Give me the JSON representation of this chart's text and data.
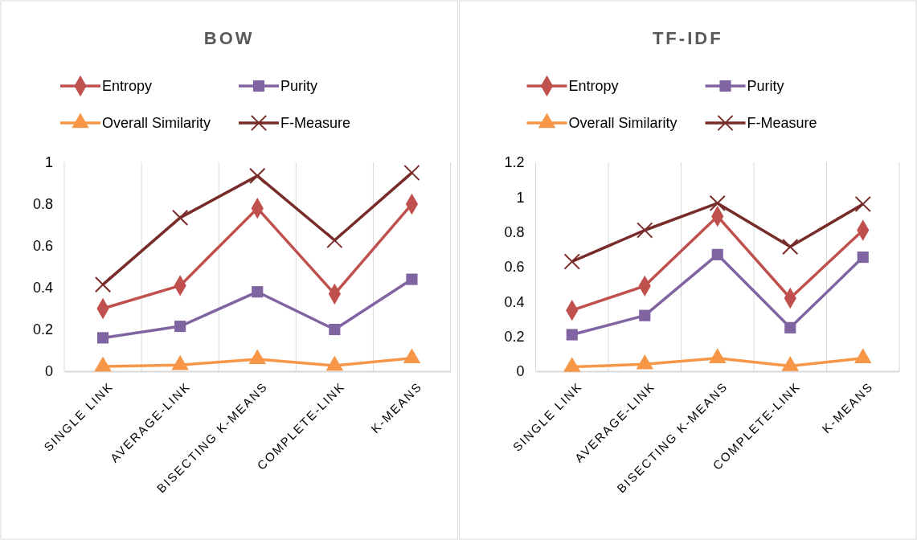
{
  "chart_data": [
    {
      "type": "line",
      "title": "BOW",
      "categories": [
        "SINGLE LINK",
        "AVERAGE-LINK",
        "BISECTING K-MEANS",
        "COMPLETE-LINK",
        "K-MEANS"
      ],
      "ylim": [
        0,
        1
      ],
      "yticks": [
        0,
        0.2,
        0.4,
        0.6,
        0.8,
        1
      ],
      "grid": "x",
      "legend": "top",
      "series": [
        {
          "name": "Entropy",
          "color": "#c0504d",
          "marker": "diamond",
          "values": [
            0.3,
            0.41,
            0.78,
            0.37,
            0.8
          ]
        },
        {
          "name": "Purity",
          "color": "#8064a2",
          "marker": "square",
          "values": [
            0.16,
            0.215,
            0.38,
            0.2,
            0.44
          ]
        },
        {
          "name": "Overall Similarity",
          "color": "#f79646",
          "marker": "triangle",
          "values": [
            0.023,
            0.03,
            0.058,
            0.027,
            0.062
          ]
        },
        {
          "name": "F-Measure",
          "color": "#772c2a",
          "marker": "cross",
          "values": [
            0.415,
            0.735,
            0.935,
            0.627,
            0.95
          ]
        }
      ]
    },
    {
      "type": "line",
      "title": "TF-IDF",
      "categories": [
        "SINGLE LINK",
        "AVERAGE-LINK",
        "BISECTING K-MEANS",
        "COMPLETE-LINK",
        "K-MEANS"
      ],
      "ylim": [
        0,
        1.2
      ],
      "yticks": [
        0,
        0.2,
        0.4,
        0.6,
        0.8,
        1,
        1.2
      ],
      "grid": "x",
      "legend": "top",
      "series": [
        {
          "name": "Entropy",
          "color": "#c0504d",
          "marker": "diamond",
          "values": [
            0.35,
            0.49,
            0.89,
            0.42,
            0.81
          ]
        },
        {
          "name": "Purity",
          "color": "#8064a2",
          "marker": "square",
          "values": [
            0.21,
            0.32,
            0.67,
            0.25,
            0.655
          ]
        },
        {
          "name": "Overall Similarity",
          "color": "#f79646",
          "marker": "triangle",
          "values": [
            0.025,
            0.04,
            0.075,
            0.03,
            0.075
          ]
        },
        {
          "name": "F-Measure",
          "color": "#772c2a",
          "marker": "cross",
          "values": [
            0.63,
            0.81,
            0.965,
            0.715,
            0.96
          ]
        }
      ]
    }
  ]
}
